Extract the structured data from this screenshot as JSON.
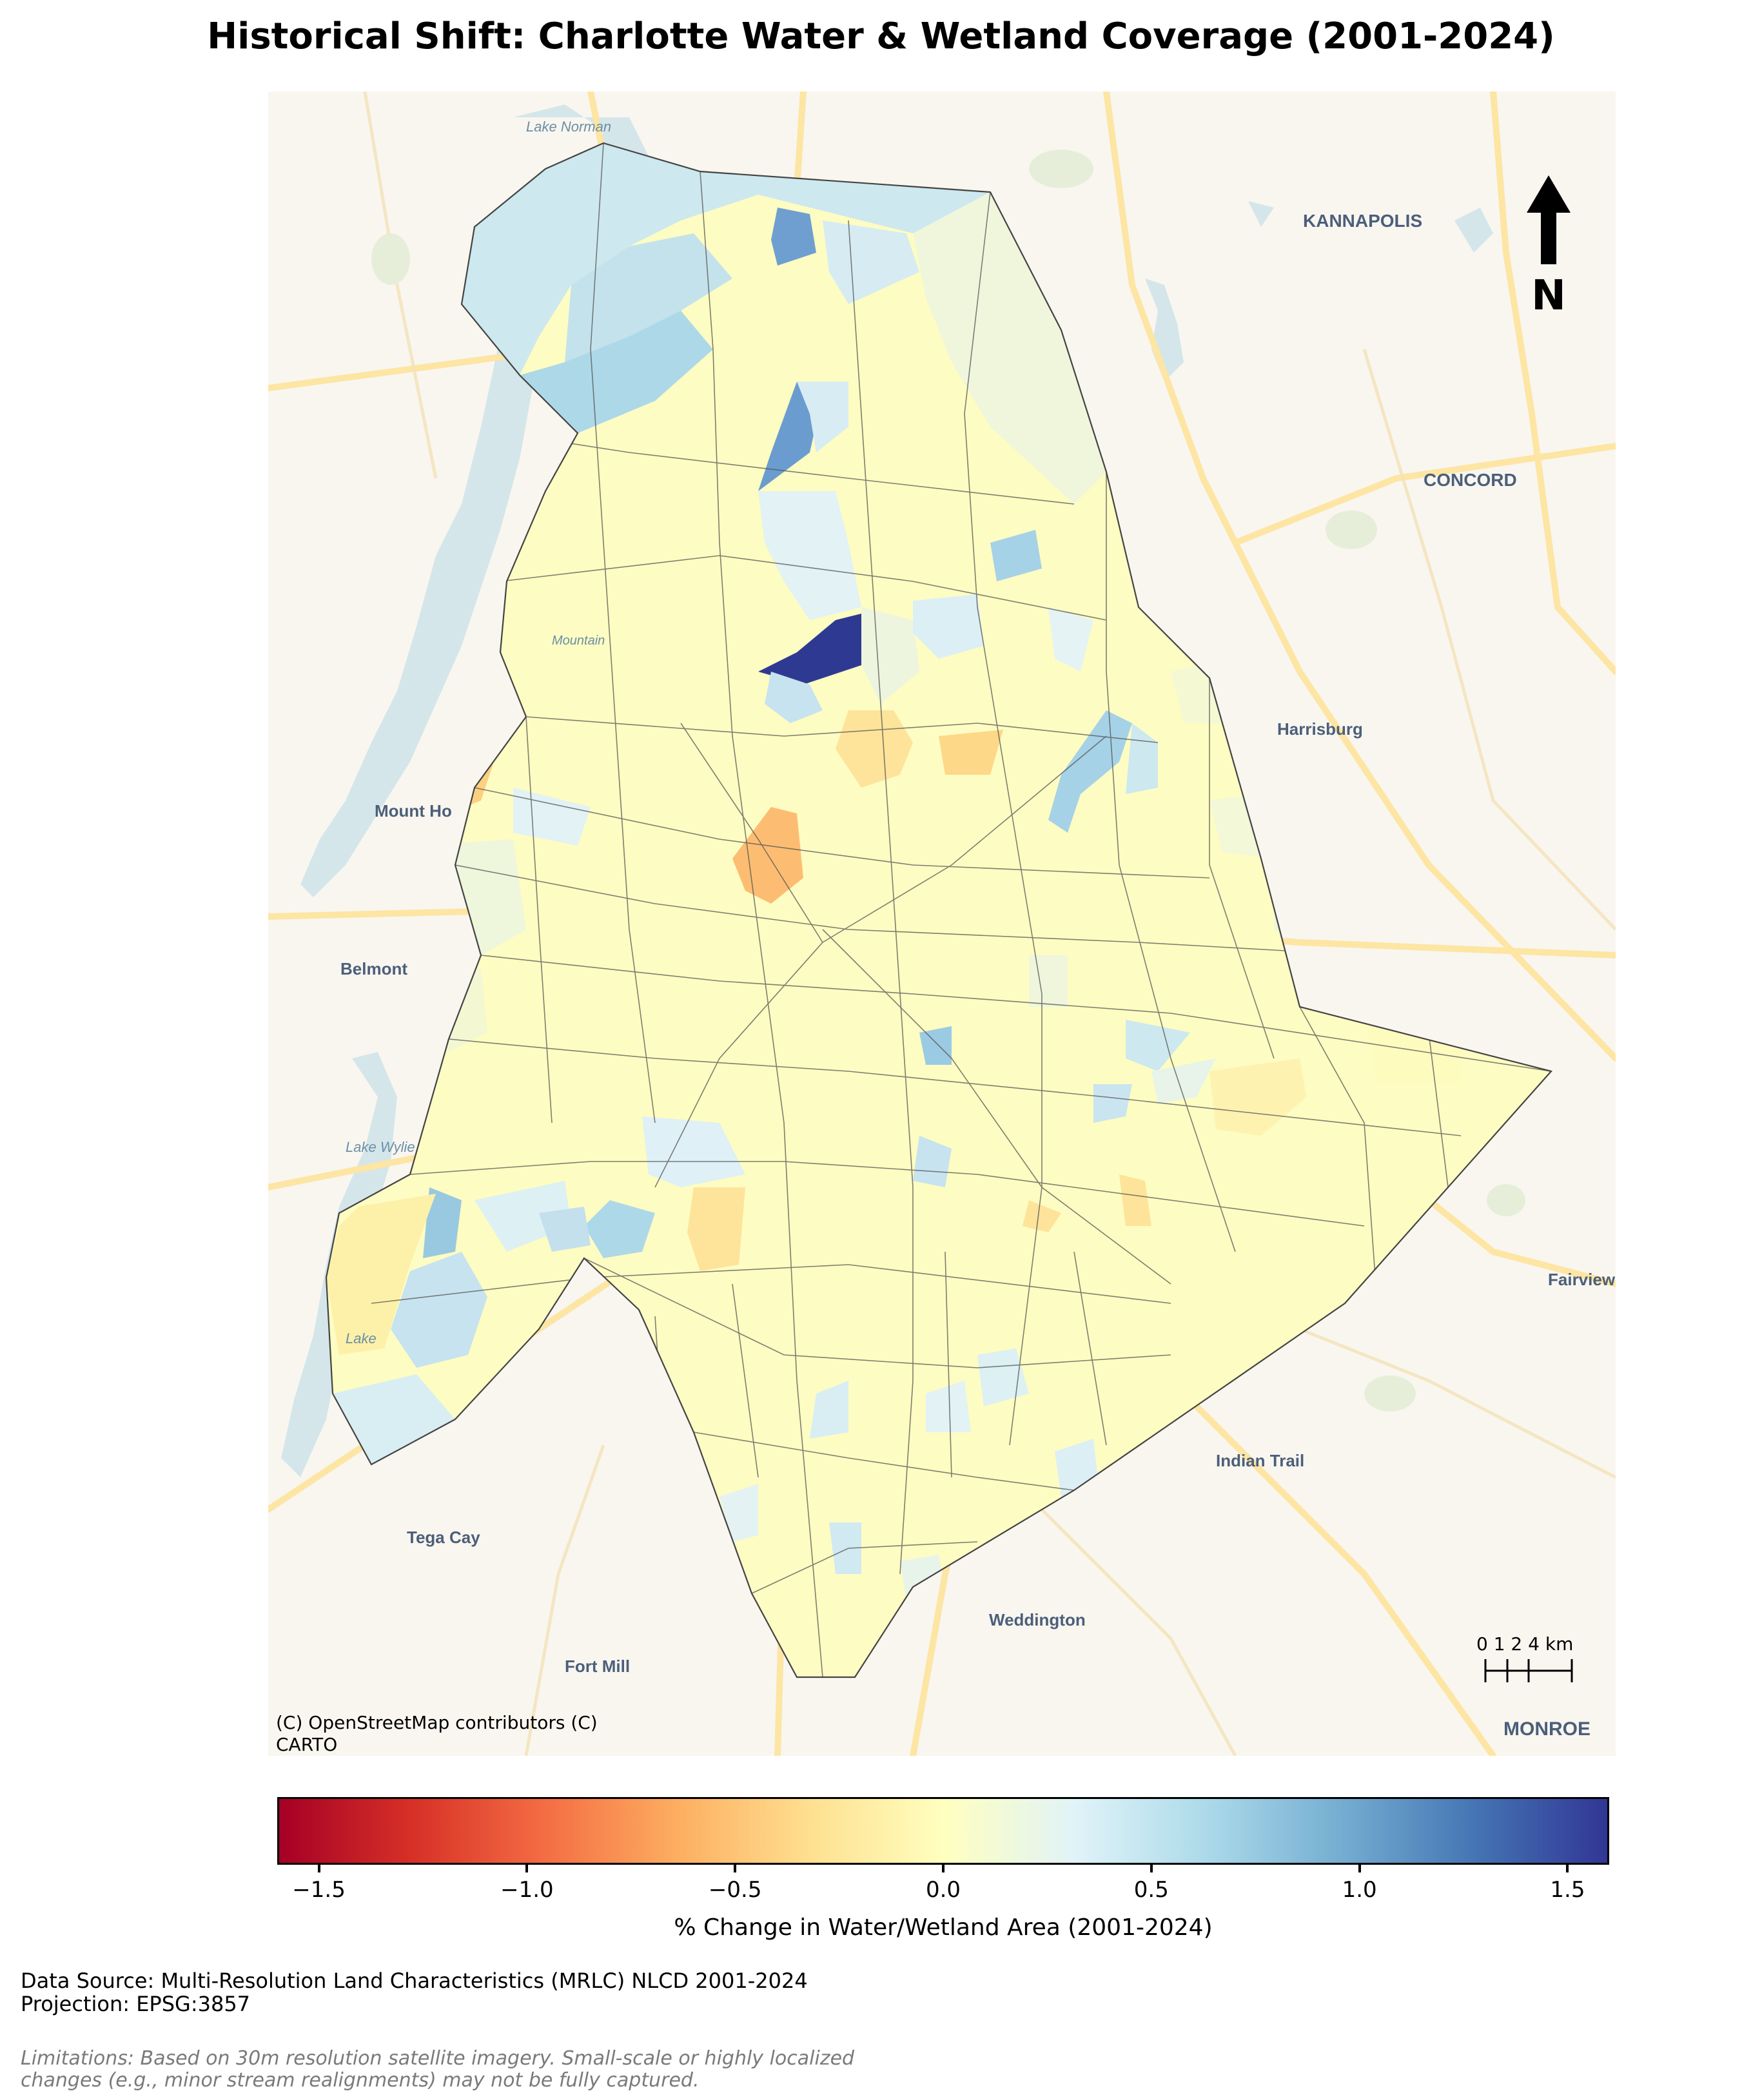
{
  "title": "Historical Shift: Charlotte Water & Wetland Coverage (2001-2024)",
  "basemap_labels": {
    "lake_norman": "Lake Norman",
    "kannapolis": "KANNAPOLIS",
    "concord": "CONCORD",
    "mountain": "Mountain",
    "harrisburg": "Harrisburg",
    "mount_holly": "Mount Ho",
    "belmont": "Belmont",
    "lake_wylie": "Lake Wylie",
    "lake": "Lake",
    "fairview": "Fairview",
    "indian_trail": "Indian Trail",
    "tega_cay": "Tega Cay",
    "weddington": "Weddington",
    "fort_mill": "Fort Mill",
    "monroe": "MONROE"
  },
  "north_arrow": "N",
  "scale_bar": {
    "label": "0 1 2 4 km"
  },
  "attribution": [
    "(C) OpenStreetMap contributors (C)",
    "CARTO"
  ],
  "colorbar": {
    "label": "% Change in Water/Wetland Area (2001-2024)",
    "min": -1.6,
    "max": 1.6,
    "ticks": [
      "−1.5",
      "−1.0",
      "−0.5",
      "0.0",
      "0.5",
      "1.0",
      "1.5"
    ],
    "tick_values": [
      -1.5,
      -1.0,
      -0.5,
      0.0,
      0.5,
      1.0,
      1.5
    ],
    "colormap": "RdYlBu",
    "colors": [
      "#a50026",
      "#d73027",
      "#f46d43",
      "#fdae61",
      "#fee090",
      "#ffffbf",
      "#e0f3f8",
      "#abd9e9",
      "#74add1",
      "#4575b4",
      "#313695"
    ]
  },
  "footer": {
    "source": "Data Source: Multi-Resolution Land Characteristics (MRLC) NLCD 2001-2024",
    "projection": "Projection: EPSG:3857",
    "limitations_1": "Limitations: Based on 30m resolution satellite imagery. Small-scale or highly localized",
    "limitations_2": "changes (e.g., minor stream realignments) may not be fully captured."
  },
  "colors": {
    "basemap_bg": "#f9f6f0",
    "water": "#d4e6ea",
    "roads": "#fde5a3",
    "park": "#e6eed9",
    "tract_stroke": "#555555"
  }
}
